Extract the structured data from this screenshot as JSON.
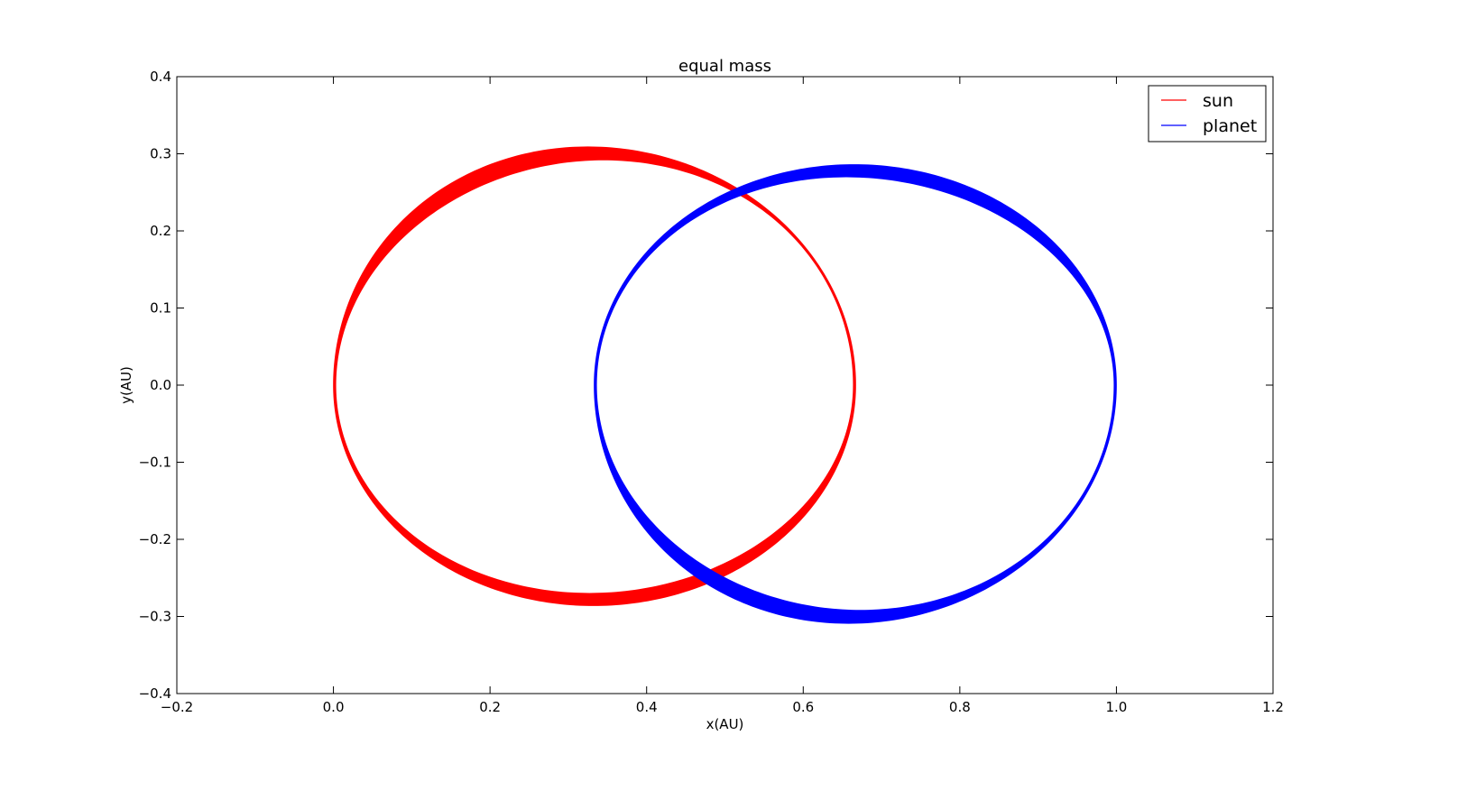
{
  "chart_data": {
    "type": "line",
    "title": "equal mass",
    "xlabel": "x(AU)",
    "ylabel": "y(AU)",
    "xlim": [
      -0.2,
      1.2
    ],
    "ylim": [
      -0.4,
      0.4
    ],
    "xticks": [
      -0.2,
      0.0,
      0.2,
      0.4,
      0.6,
      0.8,
      1.0,
      1.2
    ],
    "xtick_labels": [
      "−0.2",
      "0.0",
      "0.2",
      "0.4",
      "0.6",
      "0.8",
      "1.0",
      "1.2"
    ],
    "yticks": [
      -0.4,
      -0.3,
      -0.2,
      -0.1,
      0.0,
      0.1,
      0.2,
      0.3,
      0.4
    ],
    "ytick_labels": [
      "−0.4",
      "−0.3",
      "−0.2",
      "−0.1",
      "0.0",
      "0.1",
      "0.2",
      "0.3",
      "0.4"
    ],
    "grid": false,
    "legend_position": "top-right",
    "series": [
      {
        "name": "sun",
        "color": "#ff0000",
        "shape": "precessing-ellipse-band",
        "outer_ellipse": {
          "x_range": [
            0.0,
            0.667
          ],
          "y_top": 0.309,
          "y_bottom": -0.286,
          "apex_x": 0.325,
          "bottom_x": 0.335
        },
        "inner_ellipse": {
          "x_range": [
            0.003,
            0.664
          ],
          "y_top": 0.292,
          "y_bottom": -0.27,
          "apex_x": 0.345,
          "bottom_x": 0.34
        }
      },
      {
        "name": "planet",
        "color": "#0000ff",
        "shape": "precessing-ellipse-band",
        "outer_ellipse": {
          "x_range": [
            0.333,
            1.0
          ],
          "y_top": 0.286,
          "y_bottom": -0.309,
          "apex_x": 0.665,
          "bottom_x": 0.675
        },
        "inner_ellipse": {
          "x_range": [
            0.336,
            0.997
          ],
          "y_top": 0.27,
          "y_bottom": -0.292,
          "apex_x": 0.655,
          "bottom_x": 0.66
        }
      }
    ]
  }
}
